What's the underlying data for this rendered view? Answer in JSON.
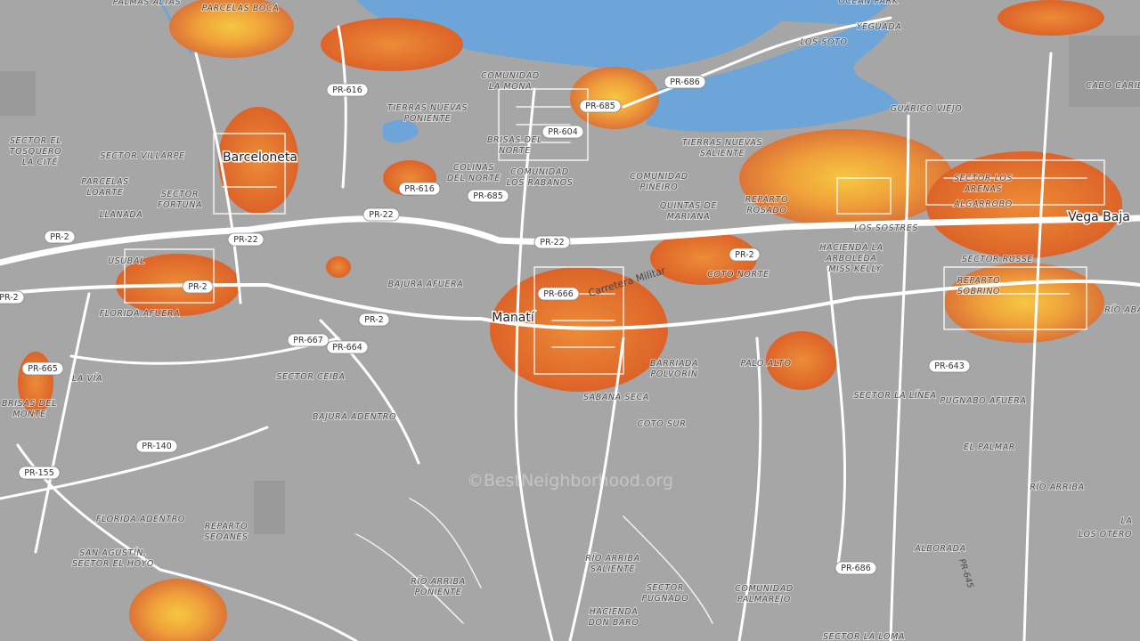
{
  "map": {
    "cities": [
      "Barceloneta",
      "Manatí",
      "Vega Baja"
    ],
    "places": [
      [
        "PALMAS ALTAS"
      ],
      [
        "PARCELAS BOCA"
      ],
      [
        "OCEAN PARK"
      ],
      [
        "YEGUADA"
      ],
      [
        "LOS SOTO"
      ],
      [
        "CABO CARIBE"
      ],
      [
        "COMUNIDAD",
        "LA MONA"
      ],
      [
        "TIERRAS NUEVAS",
        "PONIENTE"
      ],
      [
        "SECTOR EL",
        "TOSQUERO"
      ],
      [
        "LA CITÉ"
      ],
      [
        "SECTOR VILLARPE"
      ],
      [
        "PARCELAS",
        "LOARTE"
      ],
      [
        "SECTOR",
        "FORTUNA"
      ],
      [
        "LLANADA"
      ],
      [
        "BRISAS DEL",
        "NORTE"
      ],
      [
        "COLINAS",
        "DEL NORTE"
      ],
      [
        "COMUNIDAD",
        "LOS RABANOS"
      ],
      [
        "COMUNIDAD",
        "PIÑEIRO"
      ],
      [
        "TIERRAS NUEVAS",
        "SALIENTE"
      ],
      [
        "GUÁRICO VIEJO"
      ],
      [
        "QUINTAS DE",
        "MARIANA"
      ],
      [
        "REPARTO",
        "ROSADO"
      ],
      [
        "LOS SOSTRES"
      ],
      [
        "SECTOR LOS",
        "ARENAS"
      ],
      [
        "ALGARROBO"
      ],
      [
        "HACIENDA LA",
        "ARBOLEDA"
      ],
      [
        "MISS KELLY"
      ],
      [
        "SECTOR RUSSE"
      ],
      [
        "REPARTO",
        "SOBRINO"
      ],
      [
        "USUBAL"
      ],
      [
        "FLORIDA AFUERA"
      ],
      [
        "BAJURA AFUERA"
      ],
      [
        "COTO NORTE"
      ],
      [
        "LA VÍA"
      ],
      [
        "BRISAS DEL",
        "MONTE"
      ],
      [
        "SECTOR CEIBA"
      ],
      [
        "BAJURA ADENTRO"
      ],
      [
        "BARRIADA",
        "POLVORÍN"
      ],
      [
        "SABANA SECA"
      ],
      [
        "PALO ALTO"
      ],
      [
        "SECTOR LA LÍNEA"
      ],
      [
        "PUGNABO AFUERA"
      ],
      [
        "COTO SUR"
      ],
      [
        "EL PALMAR"
      ],
      [
        "RÍO ARRIBA"
      ],
      [
        "FLORIDA ADENTRO"
      ],
      [
        "REPARTO",
        "SEOANES"
      ],
      [
        "SAN AGUSTÍN,",
        "SECTOR EL HOYO"
      ],
      [
        "RÍO ARRIBA",
        "SALIENTE"
      ],
      [
        "RÍO ARRIBA",
        "PONIENTE"
      ],
      [
        "SECTOR",
        "PUGNADO"
      ],
      [
        "COMUNIDAD",
        "PALMAREJO"
      ],
      [
        "HACIENDA",
        "DON BARO"
      ],
      [
        "ALBORADA"
      ],
      [
        "LOS OTERO"
      ],
      [
        "LA"
      ],
      [
        "SECTOR LA LOMA"
      ],
      [
        "RÍO ABA"
      ]
    ],
    "roads": [
      "PR-616",
      "PR-686",
      "PR-685",
      "PR-604",
      "PR-616",
      "PR-685",
      "PR-22",
      "PR-22",
      "PR-22",
      "PR-2",
      "PR-2",
      "PR-2",
      "PR-2",
      "PR-2",
      "PR-666",
      "PR-667",
      "PR-664",
      "PR-665",
      "PR-140",
      "PR-155",
      "PR-643",
      "PR-686"
    ],
    "streets": [
      "Carretera Militar",
      "PR-645"
    ],
    "watermark": "©BestNeighborhood.org"
  }
}
